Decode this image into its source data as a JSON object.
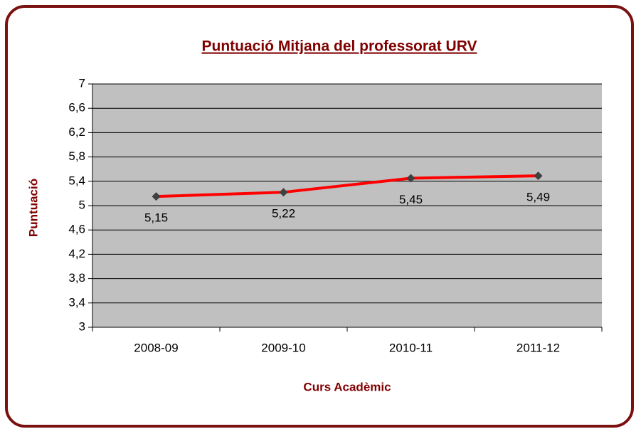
{
  "chart_data": {
    "type": "line",
    "title": "Puntuació Mitjana del professorat URV",
    "x_label": "Curs Acadèmic",
    "y_label": "Puntuació",
    "categories": [
      "2008-09",
      "2009-10",
      "2010-11",
      "2011-12"
    ],
    "series": [
      {
        "name": "Puntuació",
        "color": "#ff0000",
        "marker_color": "#404040",
        "values": [
          5.15,
          5.22,
          5.45,
          5.49
        ],
        "value_labels": [
          "5,15",
          "5,22",
          "5,45",
          "5,49"
        ]
      }
    ],
    "ylim": [
      3,
      7
    ],
    "yticks": [
      3,
      {
        "value": 3.4,
        "label": "3,4"
      },
      {
        "value": 3.8,
        "label": "3,8"
      },
      {
        "value": 4.2,
        "label": "4,2"
      },
      {
        "value": 4.6,
        "label": "4,6"
      },
      5,
      {
        "value": 5.4,
        "label": "5,4"
      },
      {
        "value": 5.8,
        "label": "5,8"
      },
      {
        "value": 6.2,
        "label": "6,2"
      },
      {
        "value": 6.6,
        "label": "6,6"
      },
      7
    ],
    "grid": true,
    "plot_background": "#c0c0c0"
  }
}
